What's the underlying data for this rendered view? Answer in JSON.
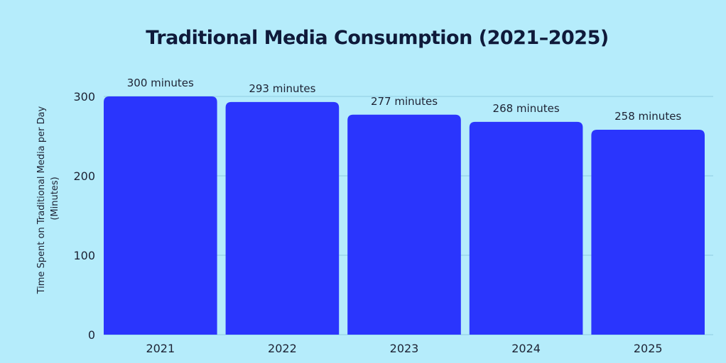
{
  "chart_data": {
    "type": "bar",
    "title": "Traditional Media Consumption (2021–2025)",
    "categories": [
      "2021",
      "2022",
      "2023",
      "2024",
      "2025"
    ],
    "values": [
      300,
      293,
      277,
      268,
      258
    ],
    "data_labels": [
      "300 minutes",
      "293 minutes",
      "277 minutes",
      "268 minutes",
      "258 minutes"
    ],
    "xlabel": "",
    "ylabel_lines": [
      "Time Spent on Traditional Media per Day",
      "(Minutes)"
    ],
    "y_ticks": [
      "0",
      "100",
      "200",
      "300"
    ],
    "y_tick_values": [
      0,
      100,
      200,
      300
    ],
    "ylim": [
      0,
      300
    ],
    "grid": "horizontal",
    "bar_color": "#2a35fd",
    "grid_color": "#8fcde0"
  }
}
